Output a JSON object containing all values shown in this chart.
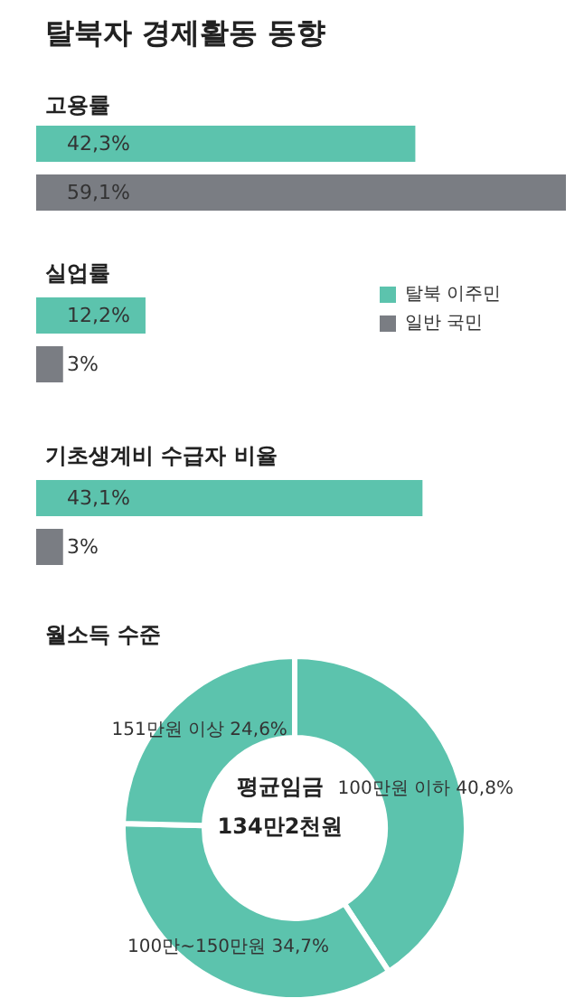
{
  "chart_data": [
    {
      "type": "bar",
      "title": "탈북자 경제활동 동향",
      "subtitle": "고용률",
      "orientation": "horizontal",
      "categories": [
        null
      ],
      "xlim": [
        0,
        59.1
      ],
      "tick_labels": false,
      "series": [
        {
          "color": "#5cc3ad",
          "values": [
            42.3
          ],
          "value_labels": [
            "42,3%"
          ]
        },
        {
          "color": "#7a7d83",
          "values": [
            59.1
          ],
          "value_labels": [
            "59,1%"
          ]
        }
      ]
    },
    {
      "type": "bar",
      "title": "실업률",
      "orientation": "horizontal",
      "categories": [
        null
      ],
      "tick_labels": false,
      "legend": "right",
      "series": [
        {
          "name": "탈북 이주민",
          "color": "#5cc3ad",
          "values": [
            12.2
          ],
          "value_labels": [
            "12,2%"
          ]
        },
        {
          "name": "일반 국민",
          "color": "#7a7d83",
          "values": [
            3
          ],
          "value_labels": [
            "3%"
          ]
        }
      ]
    },
    {
      "type": "bar",
      "title": "기초생계비 수급자 비율",
      "orientation": "horizontal",
      "categories": [
        null
      ],
      "tick_labels": false,
      "series": [
        {
          "color": "#5cc3ad",
          "values": [
            43.1
          ],
          "value_labels": [
            "43,1%"
          ]
        },
        {
          "color": "#7a7d83",
          "values": [
            3
          ],
          "value_labels": [
            "3%"
          ]
        }
      ]
    },
    {
      "type": "donut",
      "title": "월소득 수준",
      "categories": [
        "100만원 이하",
        "100만~150만원",
        "151만원 이상"
      ],
      "values": [
        40.8,
        34.7,
        24.6
      ],
      "value_labels": [
        "40,8%",
        "34,7%",
        "24,6%"
      ],
      "colors": [
        "#5cc3ad",
        "#5cc3ad",
        "#5cc3ad"
      ],
      "annotations": [
        "평균임금",
        "134만2천원"
      ]
    }
  ]
}
